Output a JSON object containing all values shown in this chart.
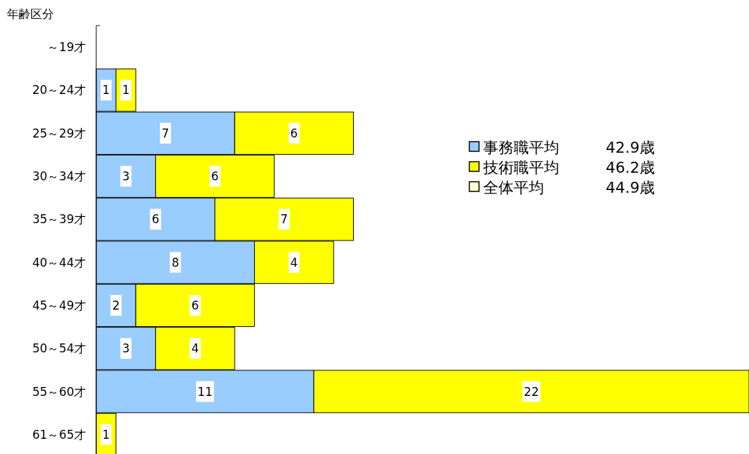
{
  "chart_data": {
    "type": "bar",
    "orientation": "horizontal",
    "stacked": true,
    "ylabel": "年齢区分",
    "categories": [
      "～19才",
      "20～24才",
      "25～29才",
      "30～34才",
      "35～39才",
      "40～44才",
      "45～49才",
      "50～54才",
      "55～60才",
      "61～65才"
    ],
    "series": [
      {
        "name": "事務職平均",
        "color": "#99ccff",
        "values": [
          null,
          1,
          7,
          3,
          6,
          8,
          2,
          3,
          11,
          null
        ]
      },
      {
        "name": "技術職平均",
        "color": "#ffff00",
        "values": [
          null,
          1,
          6,
          6,
          7,
          4,
          6,
          4,
          22,
          1
        ]
      },
      {
        "name": "全体平均",
        "color": "#ffffcc",
        "values": [
          null,
          null,
          null,
          null,
          null,
          null,
          null,
          null,
          null,
          null
        ]
      }
    ],
    "annotations": [
      "42.9歳",
      "46.2歳",
      "44.9歳"
    ],
    "data_labels": true,
    "legend": "right"
  }
}
